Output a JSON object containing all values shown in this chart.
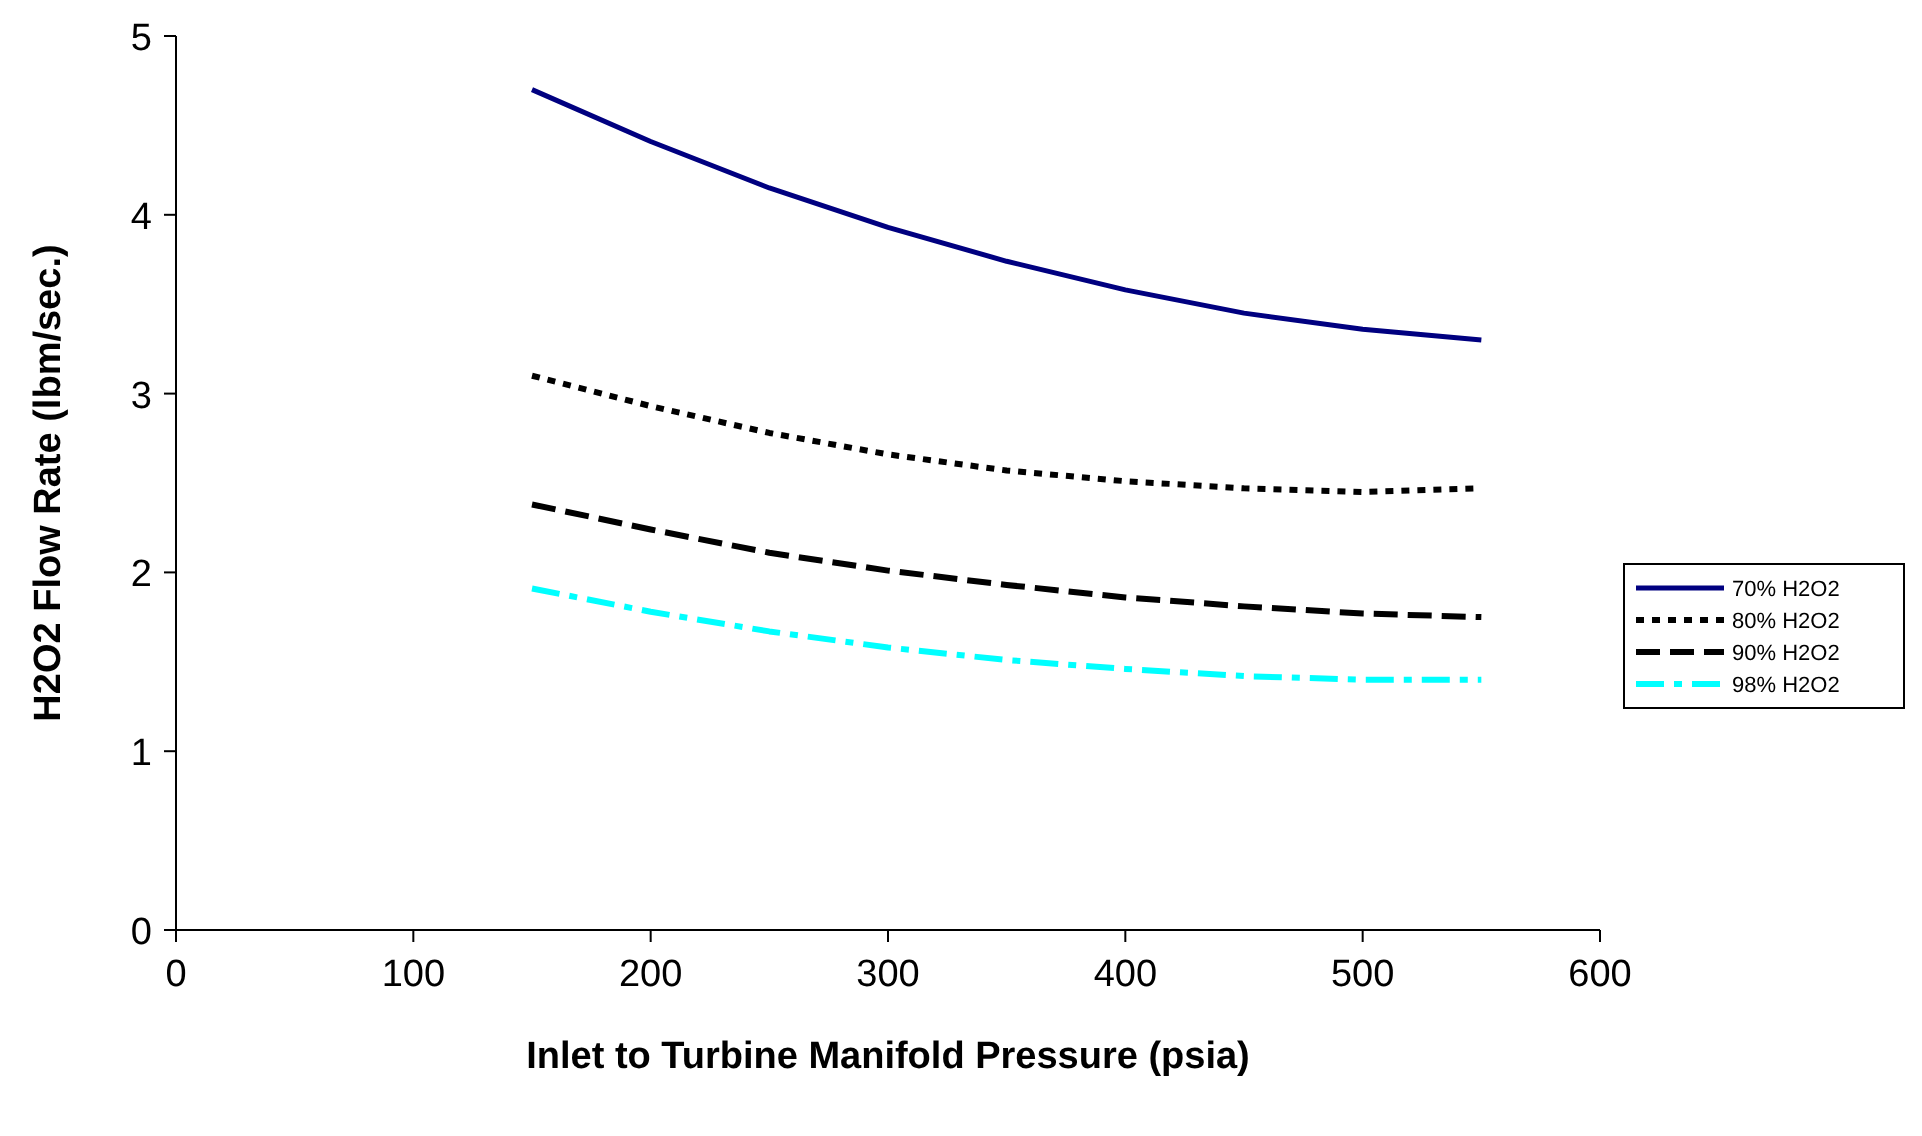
{
  "chart_data": {
    "type": "line",
    "xlabel": "Inlet to Turbine Manifold Pressure (psia)",
    "ylabel": "H2O2 Flow Rate (lbm/sec.)",
    "x": [
      150,
      200,
      250,
      300,
      350,
      400,
      450,
      500,
      550
    ],
    "xlim": [
      0,
      600
    ],
    "xticks": [
      0,
      100,
      200,
      300,
      400,
      500,
      600
    ],
    "ylim": [
      0,
      5
    ],
    "yticks": [
      0,
      1,
      2,
      3,
      4,
      5
    ],
    "grid": false,
    "legend": "right",
    "series": [
      {
        "name": "70% H2O2",
        "color": "#000080",
        "line_style": "solid",
        "values": [
          4.7,
          4.41,
          4.15,
          3.93,
          3.74,
          3.58,
          3.45,
          3.36,
          3.3
        ]
      },
      {
        "name": "80% H2O2",
        "color": "#000000",
        "line_style": "dotted",
        "values": [
          3.1,
          2.93,
          2.78,
          2.66,
          2.57,
          2.51,
          2.47,
          2.45,
          2.47
        ]
      },
      {
        "name": "90% H2O2",
        "color": "#000000",
        "line_style": "dashed",
        "values": [
          2.38,
          2.24,
          2.11,
          2.01,
          1.93,
          1.86,
          1.81,
          1.77,
          1.75
        ]
      },
      {
        "name": "98% H2O2",
        "color": "#00ffff",
        "line_style": "dashdot",
        "values": [
          1.91,
          1.78,
          1.67,
          1.58,
          1.51,
          1.46,
          1.42,
          1.4,
          1.4
        ]
      }
    ]
  }
}
